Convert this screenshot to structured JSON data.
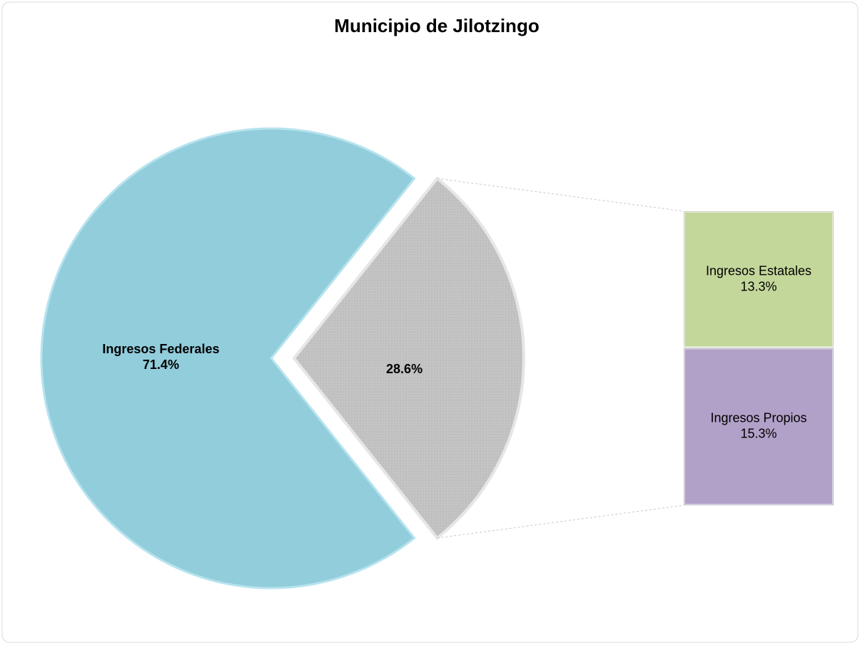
{
  "chart_data": {
    "type": "bar-of-pie",
    "title": "Municipio de Jilotzingo",
    "categories": [
      "Ingresos Federales",
      null
    ],
    "values": [
      71.4,
      28.6
    ],
    "value_labels": [
      "71.4%",
      "28.6%"
    ],
    "colors": [
      "#92cddc",
      "#bfbfbf"
    ],
    "breakdown": {
      "categories": [
        "Ingresos Estatales",
        "Ingresos Propios"
      ],
      "values": [
        13.3,
        15.3
      ],
      "value_labels": [
        "13.3%",
        "15.3%"
      ],
      "colors": [
        "#c4d79b",
        "#b1a0c7"
      ]
    }
  }
}
